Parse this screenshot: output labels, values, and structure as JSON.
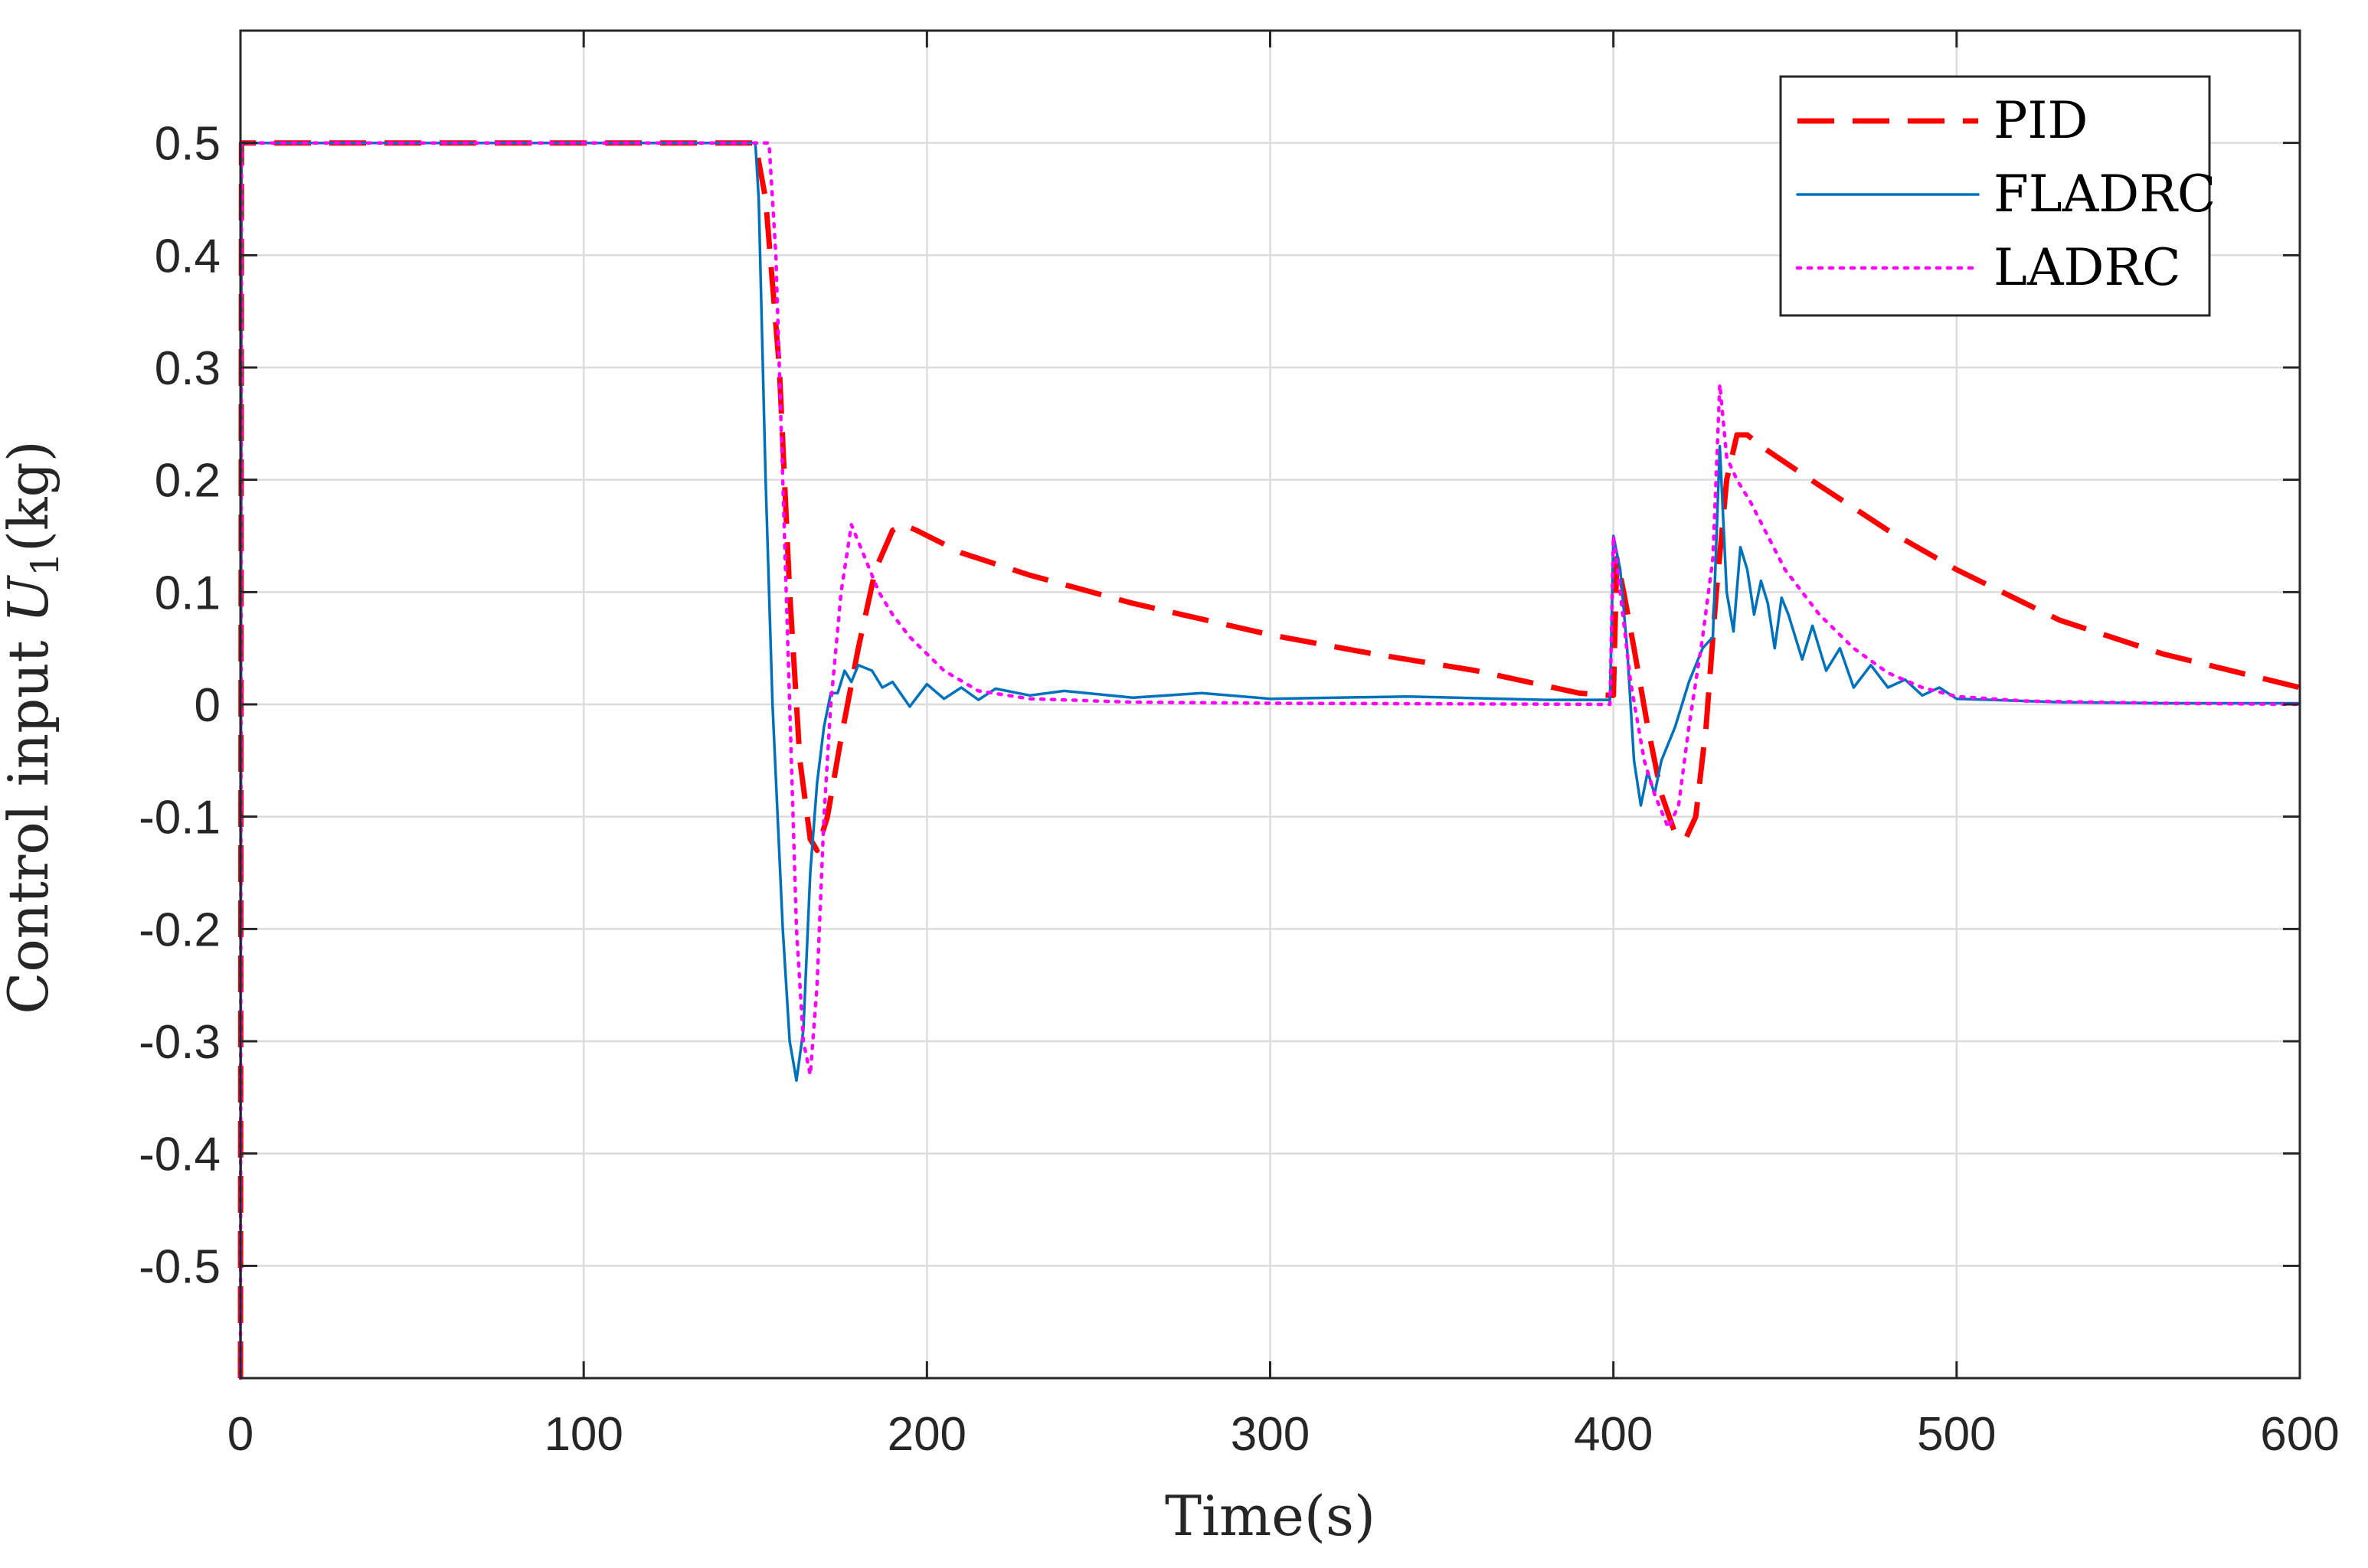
{
  "chart_data": {
    "type": "line",
    "title": "",
    "xlabel": "Time(s)",
    "ylabel_prefix": "Control input ",
    "ylabel_symbol": "U",
    "ylabel_subscript": "1",
    "ylabel_suffix": "(kg)",
    "xlim": [
      0,
      600
    ],
    "ylim": [
      -0.6,
      0.6
    ],
    "xticks": [
      0,
      100,
      200,
      300,
      400,
      500,
      600
    ],
    "xtick_labels": [
      "0",
      "100",
      "200",
      "300",
      "400",
      "500",
      "600"
    ],
    "yticks": [
      -0.5,
      -0.4,
      -0.3,
      -0.2,
      -0.1,
      0,
      0.1,
      0.2,
      0.3,
      0.4,
      0.5
    ],
    "ytick_labels": [
      "-0.5",
      "-0.4",
      "-0.3",
      "-0.2",
      "-0.1",
      "0",
      "0.1",
      "0.2",
      "0.3",
      "0.4",
      "0.5"
    ],
    "grid": true,
    "legend_position": "top-right",
    "series": [
      {
        "name": "PID",
        "color": "#ff0000",
        "style": "dashed",
        "points": [
          [
            0,
            -0.6
          ],
          [
            0.3,
            0.5
          ],
          [
            150,
            0.5
          ],
          [
            153,
            0.45
          ],
          [
            157,
            0.3
          ],
          [
            160,
            0.1
          ],
          [
            163,
            -0.05
          ],
          [
            166,
            -0.12
          ],
          [
            168,
            -0.13
          ],
          [
            171,
            -0.1
          ],
          [
            175,
            -0.03
          ],
          [
            180,
            0.05
          ],
          [
            185,
            0.12
          ],
          [
            190,
            0.155
          ],
          [
            193,
            0.16
          ],
          [
            197,
            0.155
          ],
          [
            210,
            0.135
          ],
          [
            230,
            0.115
          ],
          [
            260,
            0.09
          ],
          [
            300,
            0.062
          ],
          [
            330,
            0.045
          ],
          [
            360,
            0.03
          ],
          [
            390,
            0.01
          ],
          [
            399,
            0.008
          ],
          [
            400,
            0.008
          ],
          [
            401,
            0.13
          ],
          [
            403,
            0.1
          ],
          [
            406,
            0.05
          ],
          [
            410,
            -0.02
          ],
          [
            414,
            -0.08
          ],
          [
            418,
            -0.115
          ],
          [
            421,
            -0.12
          ],
          [
            424,
            -0.1
          ],
          [
            427,
            -0.02
          ],
          [
            430,
            0.1
          ],
          [
            433,
            0.2
          ],
          [
            436,
            0.24
          ],
          [
            439,
            0.24
          ],
          [
            443,
            0.23
          ],
          [
            460,
            0.195
          ],
          [
            480,
            0.155
          ],
          [
            500,
            0.12
          ],
          [
            530,
            0.075
          ],
          [
            560,
            0.045
          ],
          [
            600,
            0.015
          ]
        ]
      },
      {
        "name": "FLADRC",
        "color": "#0072bd",
        "style": "solid",
        "points": [
          [
            0,
            -0.6
          ],
          [
            0.3,
            0.5
          ],
          [
            150,
            0.5
          ],
          [
            151,
            0.45
          ],
          [
            153,
            0.2
          ],
          [
            155,
            0
          ],
          [
            158,
            -0.2
          ],
          [
            160,
            -0.3
          ],
          [
            162,
            -0.335
          ],
          [
            164,
            -0.29
          ],
          [
            166,
            -0.15
          ],
          [
            168,
            -0.07
          ],
          [
            170,
            -0.02
          ],
          [
            172,
            0.01
          ],
          [
            174,
            0.01
          ],
          [
            176,
            0.03
          ],
          [
            178,
            0.02
          ],
          [
            180,
            0.035
          ],
          [
            184,
            0.03
          ],
          [
            187,
            0.015
          ],
          [
            190,
            0.02
          ],
          [
            195,
            -0.002
          ],
          [
            200,
            0.018
          ],
          [
            205,
            0.005
          ],
          [
            210,
            0.015
          ],
          [
            215,
            0.004
          ],
          [
            220,
            0.014
          ],
          [
            230,
            0.008
          ],
          [
            240,
            0.012
          ],
          [
            260,
            0.006
          ],
          [
            280,
            0.01
          ],
          [
            300,
            0.005
          ],
          [
            340,
            0.007
          ],
          [
            380,
            0.004
          ],
          [
            399,
            0.004
          ],
          [
            400,
            0.15
          ],
          [
            402,
            0.12
          ],
          [
            404,
            0.05
          ],
          [
            406,
            -0.05
          ],
          [
            408,
            -0.09
          ],
          [
            410,
            -0.06
          ],
          [
            412,
            -0.08
          ],
          [
            414,
            -0.05
          ],
          [
            418,
            -0.02
          ],
          [
            422,
            0.02
          ],
          [
            426,
            0.05
          ],
          [
            429,
            0.06
          ],
          [
            431,
            0.23
          ],
          [
            433,
            0.1
          ],
          [
            435,
            0.065
          ],
          [
            437,
            0.14
          ],
          [
            439,
            0.12
          ],
          [
            441,
            0.08
          ],
          [
            443,
            0.11
          ],
          [
            445,
            0.09
          ],
          [
            447,
            0.05
          ],
          [
            449,
            0.095
          ],
          [
            451,
            0.08
          ],
          [
            455,
            0.04
          ],
          [
            458,
            0.07
          ],
          [
            462,
            0.03
          ],
          [
            466,
            0.05
          ],
          [
            470,
            0.015
          ],
          [
            475,
            0.035
          ],
          [
            480,
            0.015
          ],
          [
            485,
            0.022
          ],
          [
            490,
            0.008
          ],
          [
            495,
            0.015
          ],
          [
            500,
            0.005
          ],
          [
            510,
            0.004
          ],
          [
            530,
            0.002
          ],
          [
            560,
            0.001
          ],
          [
            600,
            0.001
          ]
        ]
      },
      {
        "name": "LADRC",
        "color": "#ff00ff",
        "style": "dotted",
        "points": [
          [
            0,
            -0.6
          ],
          [
            0.3,
            0.5
          ],
          [
            154,
            0.5
          ],
          [
            156,
            0.4
          ],
          [
            158,
            0.2
          ],
          [
            160,
            0
          ],
          [
            162,
            -0.2
          ],
          [
            164,
            -0.3
          ],
          [
            166,
            -0.33
          ],
          [
            168,
            -0.25
          ],
          [
            170,
            -0.1
          ],
          [
            172,
            0
          ],
          [
            175,
            0.1
          ],
          [
            178,
            0.16
          ],
          [
            182,
            0.13
          ],
          [
            186,
            0.1
          ],
          [
            190,
            0.08
          ],
          [
            195,
            0.06
          ],
          [
            205,
            0.03
          ],
          [
            215,
            0.012
          ],
          [
            230,
            0.005
          ],
          [
            260,
            0.002
          ],
          [
            300,
            0.001
          ],
          [
            399,
            0
          ],
          [
            400,
            0.15
          ],
          [
            402,
            0.1
          ],
          [
            405,
            0.02
          ],
          [
            409,
            -0.05
          ],
          [
            412,
            -0.08
          ],
          [
            416,
            -0.11
          ],
          [
            419,
            -0.09
          ],
          [
            422,
            -0.02
          ],
          [
            426,
            0.06
          ],
          [
            429,
            0.13
          ],
          [
            431,
            0.285
          ],
          [
            433,
            0.22
          ],
          [
            436,
            0.2
          ],
          [
            440,
            0.18
          ],
          [
            445,
            0.15
          ],
          [
            450,
            0.12
          ],
          [
            460,
            0.08
          ],
          [
            470,
            0.05
          ],
          [
            480,
            0.028
          ],
          [
            490,
            0.015
          ],
          [
            500,
            0.007
          ],
          [
            520,
            0.003
          ],
          [
            560,
            0.001
          ],
          [
            600,
            0
          ]
        ]
      }
    ]
  }
}
